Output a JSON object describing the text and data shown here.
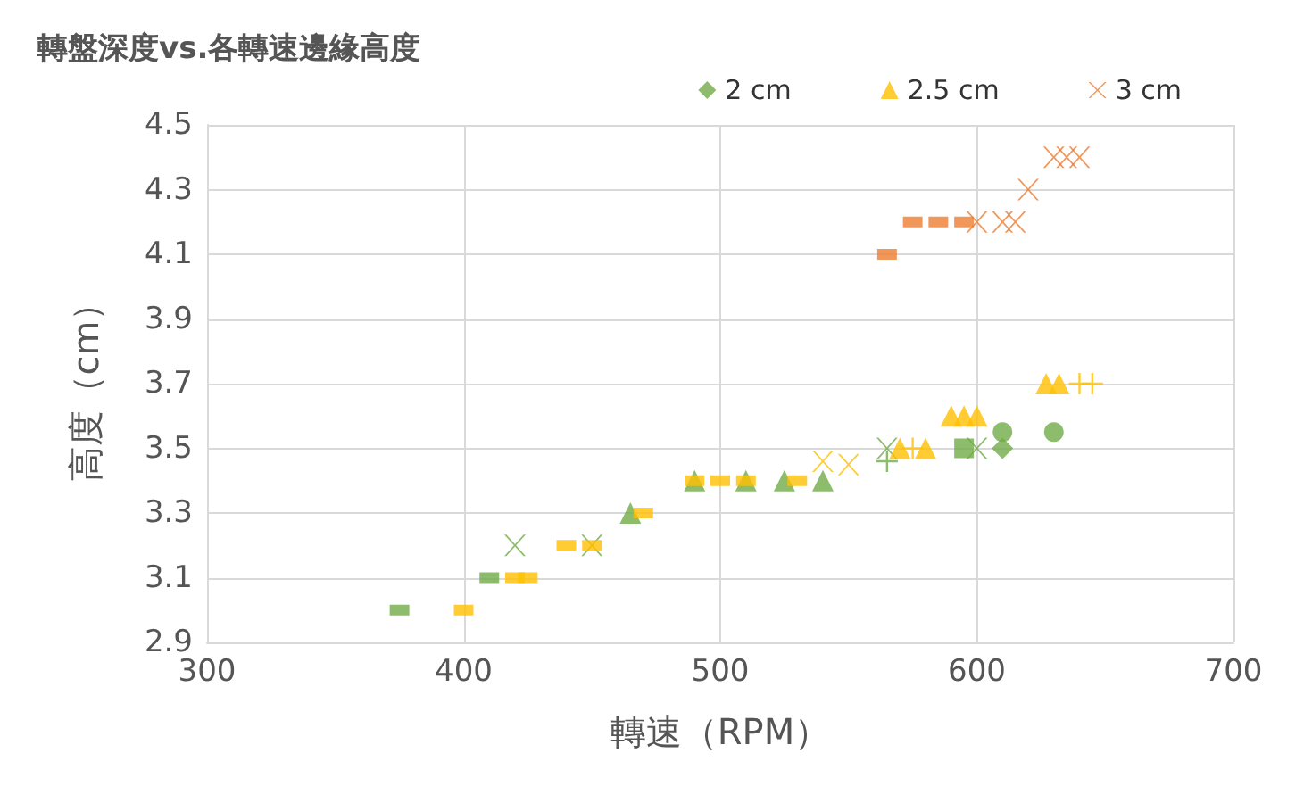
{
  "chart_data": {
    "type": "scatter",
    "title": "轉盤深度vs.各轉速邊緣高度",
    "xlabel": "轉速（RPM）",
    "ylabel": "高度（cm）",
    "xlim": [
      300,
      700
    ],
    "xticks": [
      300,
      400,
      500,
      600,
      700
    ],
    "ylim": [
      2.9,
      4.5
    ],
    "yticks": [
      2.9,
      3.1,
      3.3,
      3.5,
      3.7,
      3.9,
      4.1,
      4.3,
      4.5
    ],
    "grid": true,
    "legend": "top right",
    "series": [
      {
        "name": "2 cm",
        "color": "#70ad47",
        "marker": "diamond",
        "x": [
          610
        ],
        "values": [
          3.5
        ]
      },
      {
        "color": "#70ad47",
        "marker": "square",
        "x": [
          375,
          410
        ],
        "values": [
          3.0,
          3.1
        ]
      },
      {
        "color": "#70ad47",
        "marker": "cross",
        "x": [
          420,
          450,
          565,
          600
        ],
        "values": [
          3.2,
          3.2,
          3.5,
          3.5
        ]
      },
      {
        "color": "#70ad47",
        "marker": "triangle",
        "x": [
          465,
          490,
          510,
          525,
          540
        ],
        "values": [
          3.3,
          3.4,
          3.4,
          3.4,
          3.4
        ]
      },
      {
        "color": "#70ad47",
        "marker": "plus",
        "x": [
          565
        ],
        "values": [
          3.46
        ]
      },
      {
        "color": "#70ad47",
        "marker": "square",
        "x": [
          595
        ],
        "values": [
          3.5
        ]
      },
      {
        "color": "#70ad47",
        "marker": "circle",
        "x": [
          610,
          630
        ],
        "values": [
          3.55,
          3.55
        ]
      },
      {
        "name": "2.5 cm",
        "color": "#ffc000",
        "marker": "triangle",
        "x": [
          570,
          580,
          590,
          595,
          600,
          627,
          632
        ],
        "values": [
          3.5,
          3.5,
          3.6,
          3.6,
          3.6,
          3.7,
          3.7
        ]
      },
      {
        "color": "#ffc000",
        "marker": "square",
        "x": [
          400,
          420,
          425,
          440,
          450,
          470,
          490,
          500,
          510,
          530
        ],
        "values": [
          3.0,
          3.1,
          3.1,
          3.2,
          3.2,
          3.3,
          3.4,
          3.4,
          3.4,
          3.4
        ]
      },
      {
        "color": "#ffc000",
        "marker": "cross",
        "x": [
          540,
          550
        ],
        "values": [
          3.46,
          3.45
        ]
      },
      {
        "color": "#ffc000",
        "marker": "plus",
        "x": [
          575,
          640,
          645
        ],
        "values": [
          3.5,
          3.7,
          3.7
        ]
      },
      {
        "name": "3 cm",
        "color": "#ed7d31",
        "marker": "cross",
        "x": [
          600,
          610,
          615,
          620,
          630,
          635,
          640
        ],
        "values": [
          4.2,
          4.2,
          4.2,
          4.3,
          4.4,
          4.4,
          4.4
        ]
      },
      {
        "color": "#ed7d31",
        "marker": "square",
        "x": [
          565,
          575,
          585,
          595
        ],
        "values": [
          4.1,
          4.2,
          4.2,
          4.2
        ]
      }
    ]
  }
}
